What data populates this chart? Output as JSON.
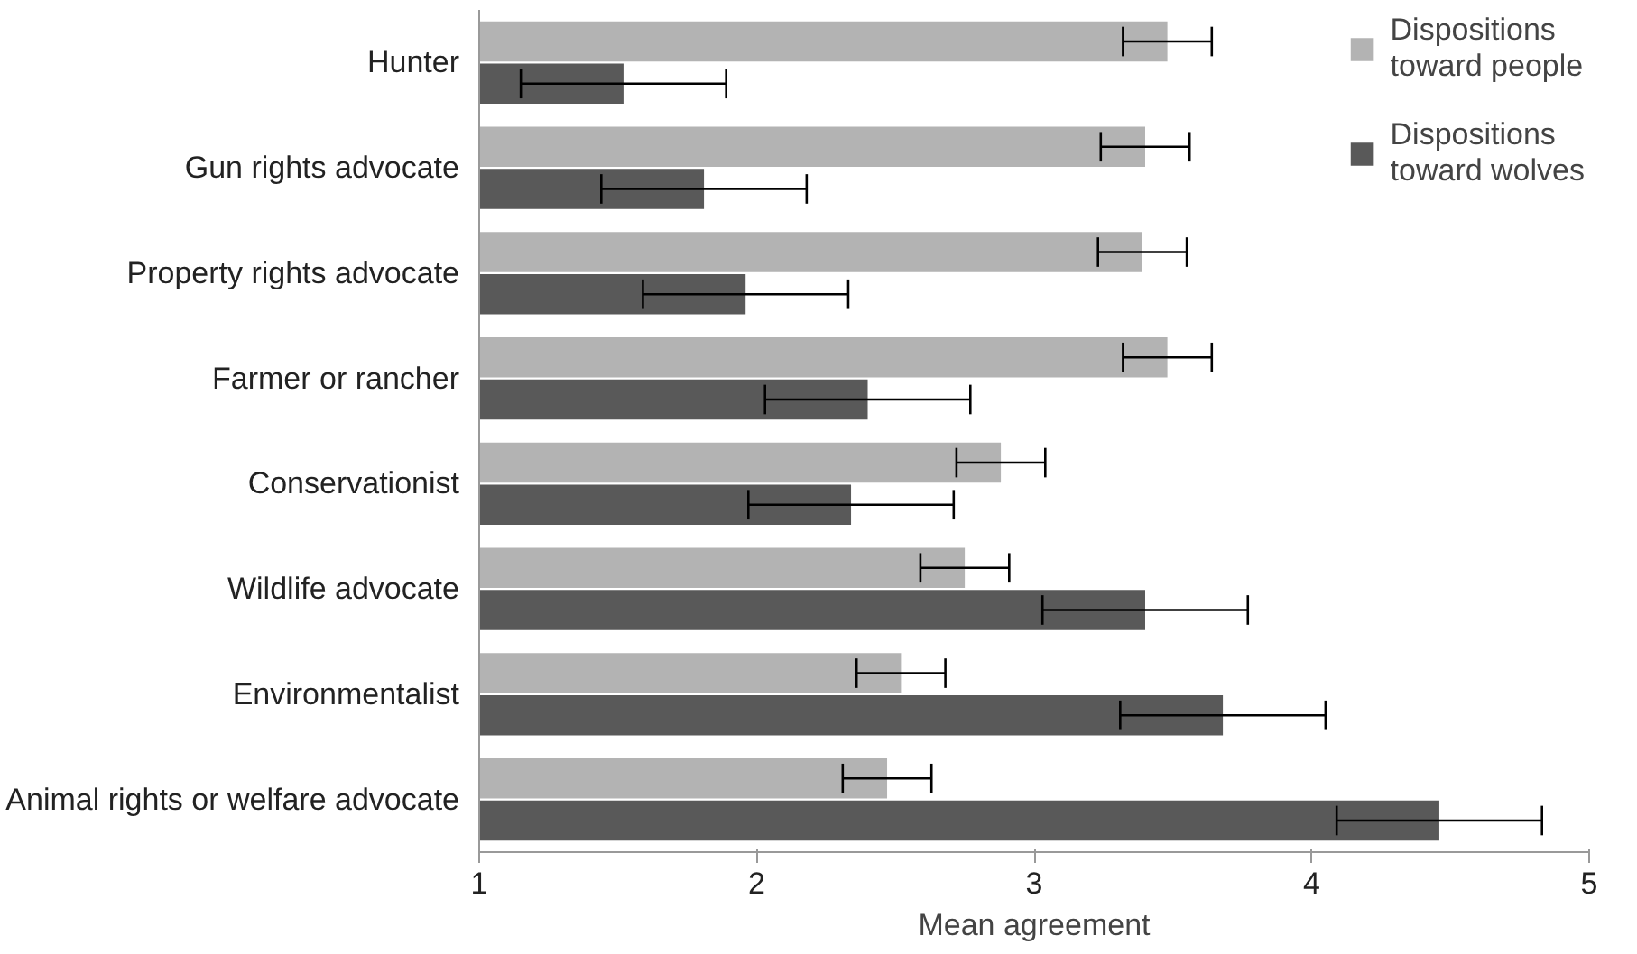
{
  "chart_data": {
    "type": "bar",
    "orientation": "horizontal",
    "xlabel": "Mean agreement",
    "categories": [
      "Hunter",
      "Gun rights advocate",
      "Property rights advocate",
      "Farmer or rancher",
      "Conservationist",
      "Wildlife advocate",
      "Environmentalist",
      "Animal rights or welfare advocate"
    ],
    "series": [
      {
        "name": "Dispositions toward people",
        "color": "#b3b3b3",
        "values": [
          3.48,
          3.4,
          3.39,
          3.48,
          2.88,
          2.75,
          2.52,
          2.47
        ],
        "errors": [
          0.16,
          0.16,
          0.16,
          0.16,
          0.16,
          0.16,
          0.16,
          0.16
        ]
      },
      {
        "name": "Dispositions toward wolves",
        "color": "#595959",
        "values": [
          1.52,
          1.81,
          1.96,
          2.4,
          2.34,
          3.4,
          3.68,
          4.46
        ],
        "errors": [
          0.37,
          0.37,
          0.37,
          0.37,
          0.37,
          0.37,
          0.37,
          0.37
        ]
      }
    ],
    "xlim": [
      1,
      5
    ],
    "xticks": [
      1,
      2,
      3,
      4,
      5
    ],
    "grid": false,
    "legend": "top right"
  }
}
